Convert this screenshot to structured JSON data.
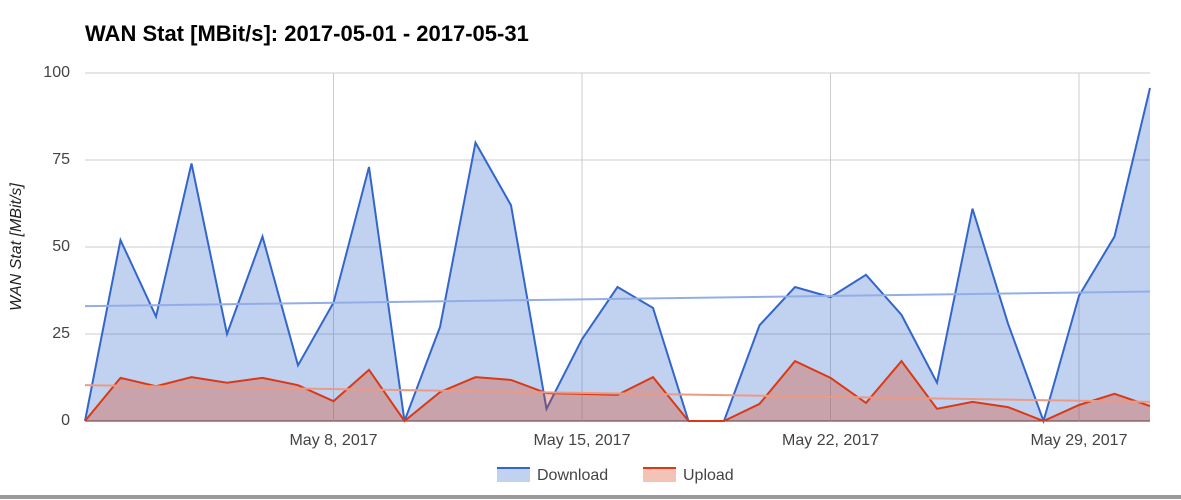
{
  "chart_data": {
    "type": "area",
    "title": "WAN Stat [MBit/s]: 2017-05-01 - 2017-05-31",
    "y_label": "WAN Stat [MBit/s]",
    "x": [
      "2017-05-01",
      "2017-05-02",
      "2017-05-03",
      "2017-05-04",
      "2017-05-05",
      "2017-05-06",
      "2017-05-07",
      "2017-05-08",
      "2017-05-09",
      "2017-05-10",
      "2017-05-11",
      "2017-05-12",
      "2017-05-13",
      "2017-05-14",
      "2017-05-15",
      "2017-05-16",
      "2017-05-17",
      "2017-05-18",
      "2017-05-19",
      "2017-05-20",
      "2017-05-21",
      "2017-05-22",
      "2017-05-23",
      "2017-05-24",
      "2017-05-25",
      "2017-05-26",
      "2017-05-27",
      "2017-05-28",
      "2017-05-29",
      "2017-05-30",
      "2017-05-31"
    ],
    "xlim": [
      "2017-05-01",
      "2017-05-31"
    ],
    "xticks": [
      {
        "value": "2017-05-08",
        "label": "May 8, 2017"
      },
      {
        "value": "2017-05-15",
        "label": "May 15, 2017"
      },
      {
        "value": "2017-05-22",
        "label": "May 22, 2017"
      },
      {
        "value": "2017-05-29",
        "label": "May 29, 2017"
      }
    ],
    "ylim": [
      0,
      100
    ],
    "yticks": [
      0,
      25,
      50,
      75,
      100
    ],
    "grid": true,
    "legend": "bottom",
    "series": [
      {
        "name": "Download",
        "color": "#3366cc",
        "trend_color": "#93aee6",
        "values": [
          0,
          52,
          30,
          74,
          25,
          53,
          16,
          34,
          73,
          0,
          27,
          80,
          62,
          3.5,
          23.5,
          38.5,
          32.5,
          0,
          0,
          27.5,
          38.5,
          35.6,
          42,
          30.5,
          11,
          61,
          28,
          0,
          36,
          53,
          95.7
        ],
        "trendline": [
          33,
          37.2
        ]
      },
      {
        "name": "Upload",
        "color": "#dc3912",
        "trend_color": "#ec9a85",
        "values": [
          0,
          12.4,
          10,
          12.6,
          11,
          12.4,
          10.3,
          5.7,
          14.7,
          0,
          8.3,
          12.6,
          11.8,
          8,
          7.8,
          7.5,
          12.6,
          0,
          0,
          4.9,
          17.2,
          12.4,
          5.2,
          17.2,
          3.5,
          5.5,
          4,
          0,
          4.6,
          7.8,
          4.3
        ],
        "trendline": [
          10.3,
          5.5
        ]
      }
    ]
  }
}
